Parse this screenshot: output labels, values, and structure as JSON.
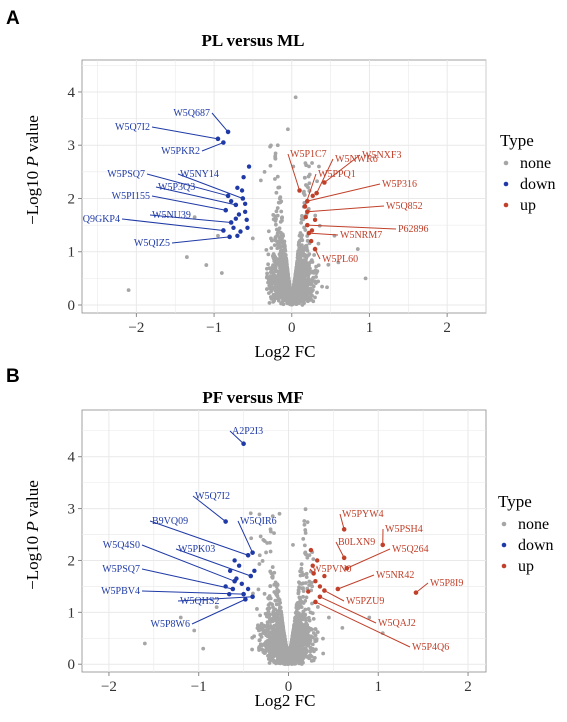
{
  "colors": {
    "none": "#a6a6a6",
    "down": "#1f3aa6",
    "up": "#c0402a",
    "grid": "#e9e9e9",
    "axis": "#8a8a8a"
  },
  "chart_data": [
    {
      "panel": "A",
      "type": "scatter",
      "title": "PL versus ML",
      "xlabel": "Log2 FC",
      "ylabel_prefix": "−Log10 ",
      "ylabel_italic": "P",
      "ylabel_suffix": " value",
      "xlim": [
        -2.7,
        2.5
      ],
      "ylim": [
        -0.15,
        4.6
      ],
      "xticks": [
        -2,
        -1,
        0,
        1,
        2
      ],
      "yticks": [
        0,
        1,
        2,
        3,
        4
      ],
      "xtick_labels": [
        "−2",
        "−1",
        "0",
        "1",
        "2"
      ],
      "ytick_labels": [
        "0",
        "1",
        "2",
        "3",
        "4"
      ],
      "grid": true,
      "legend": {
        "title": "Type",
        "position": "right",
        "entries": [
          "none",
          "down",
          "up"
        ]
      },
      "labeled_points": [
        {
          "label": "W5Q687",
          "x": -0.82,
          "y": 3.25,
          "type": "down"
        },
        {
          "label": "W5Q7I2",
          "x": -0.95,
          "y": 3.12,
          "type": "down"
        },
        {
          "label": "W5PKR2",
          "x": -0.88,
          "y": 3.05,
          "type": "down"
        },
        {
          "label": "W5PSQ7",
          "x": -0.82,
          "y": 2.05,
          "type": "down"
        },
        {
          "label": "W5NY14",
          "x": -0.63,
          "y": 2.0,
          "type": "down"
        },
        {
          "label": "W5P3Q3",
          "x": -0.72,
          "y": 1.88,
          "type": "down"
        },
        {
          "label": "W5PI155",
          "x": -0.85,
          "y": 1.78,
          "type": "down"
        },
        {
          "label": "W5NU39",
          "x": -0.78,
          "y": 1.55,
          "type": "down"
        },
        {
          "label": "Q9GKP4",
          "x": -0.88,
          "y": 1.4,
          "type": "down"
        },
        {
          "label": "W5QIZ5",
          "x": -0.8,
          "y": 1.28,
          "type": "down"
        },
        {
          "label": "W5P1C7",
          "x": 0.1,
          "y": 2.15,
          "type": "up"
        },
        {
          "label": "W5NWR6",
          "x": 0.32,
          "y": 2.1,
          "type": "up"
        },
        {
          "label": "W5NXF3",
          "x": 0.42,
          "y": 2.3,
          "type": "up"
        },
        {
          "label": "W5P316",
          "x": 0.2,
          "y": 1.95,
          "type": "up"
        },
        {
          "label": "W5PPQ1",
          "x": 0.17,
          "y": 1.85,
          "type": "up"
        },
        {
          "label": "W5Q852",
          "x": 0.2,
          "y": 1.75,
          "type": "up"
        },
        {
          "label": "P62896",
          "x": 0.2,
          "y": 1.5,
          "type": "up"
        },
        {
          "label": "W5NRM7",
          "x": 0.22,
          "y": 1.35,
          "type": "up"
        },
        {
          "label": "W5PL60",
          "x": 0.3,
          "y": 1.05,
          "type": "up"
        }
      ],
      "extra_points": {
        "down": [
          [
            -0.62,
            2.4
          ],
          [
            -0.55,
            2.6
          ],
          [
            -0.7,
            2.2
          ],
          [
            -0.6,
            1.9
          ],
          [
            -0.68,
            1.7
          ],
          [
            -0.58,
            1.6
          ],
          [
            -0.75,
            1.45
          ],
          [
            -0.66,
            1.38
          ],
          [
            -0.72,
            1.62
          ],
          [
            -0.6,
            1.75
          ],
          [
            -0.7,
            1.3
          ],
          [
            -0.64,
            2.15
          ],
          [
            -0.78,
            1.95
          ],
          [
            -0.57,
            1.45
          ]
        ],
        "up": [
          [
            0.25,
            1.2
          ],
          [
            0.3,
            1.6
          ],
          [
            0.27,
            2.05
          ],
          [
            0.18,
            1.65
          ],
          [
            0.26,
            1.4
          ]
        ]
      },
      "outlier_none": [
        [
          -2.1,
          0.28
        ],
        [
          -1.35,
          0.9
        ],
        [
          -1.1,
          0.75
        ],
        [
          -0.95,
          1.3
        ],
        [
          -0.9,
          0.6
        ],
        [
          0.85,
          1.05
        ],
        [
          0.95,
          0.5
        ],
        [
          0.05,
          3.9
        ],
        [
          -0.05,
          3.3
        ],
        [
          -0.18,
          3.0
        ],
        [
          0.02,
          2.6
        ],
        [
          -1.25,
          1.65
        ],
        [
          -0.35,
          2.5
        ],
        [
          0.35,
          2.6
        ],
        [
          0.55,
          1.3
        ],
        [
          0.6,
          0.8
        ]
      ]
    },
    {
      "panel": "B",
      "type": "scatter",
      "title": "PF versus MF",
      "xlabel": "Log2 FC",
      "ylabel_prefix": "−Log10 ",
      "ylabel_italic": "P",
      "ylabel_suffix": " value",
      "xlim": [
        -2.3,
        2.2
      ],
      "ylim": [
        -0.15,
        4.9
      ],
      "xticks": [
        -2,
        -1,
        0,
        1,
        2
      ],
      "yticks": [
        0,
        1,
        2,
        3,
        4
      ],
      "xtick_labels": [
        "−2",
        "−1",
        "0",
        "1",
        "2"
      ],
      "ytick_labels": [
        "0",
        "1",
        "2",
        "3",
        "4"
      ],
      "grid": true,
      "legend": {
        "title": "Type",
        "position": "right",
        "entries": [
          "none",
          "down",
          "up"
        ]
      },
      "labeled_points": [
        {
          "label": "A2P2I3",
          "x": -0.5,
          "y": 4.25,
          "type": "down"
        },
        {
          "label": "W5Q7I2",
          "x": -0.7,
          "y": 2.75,
          "type": "down"
        },
        {
          "label": "B9VQ09",
          "x": -0.45,
          "y": 2.1,
          "type": "down"
        },
        {
          "label": "W5QIR6",
          "x": -0.4,
          "y": 2.15,
          "type": "down"
        },
        {
          "label": "W5Q4S0",
          "x": -0.6,
          "y": 1.6,
          "type": "down"
        },
        {
          "label": "W5PK03",
          "x": -0.42,
          "y": 1.7,
          "type": "down"
        },
        {
          "label": "W5PSQ7",
          "x": -0.62,
          "y": 1.45,
          "type": "down"
        },
        {
          "label": "W5PBV4",
          "x": -0.5,
          "y": 1.35,
          "type": "down"
        },
        {
          "label": "W5QHS2",
          "x": -0.4,
          "y": 1.3,
          "type": "down"
        },
        {
          "label": "W5P8W6",
          "x": -0.48,
          "y": 1.25,
          "type": "down"
        },
        {
          "label": "W5PYW4",
          "x": 0.62,
          "y": 2.6,
          "type": "up"
        },
        {
          "label": "W5PVN0",
          "x": 0.28,
          "y": 1.75,
          "type": "up"
        },
        {
          "label": "B0LXN9",
          "x": 0.62,
          "y": 2.05,
          "type": "up"
        },
        {
          "label": "W5PSH4",
          "x": 1.05,
          "y": 2.3,
          "type": "up"
        },
        {
          "label": "W5Q264",
          "x": 0.65,
          "y": 1.85,
          "type": "up"
        },
        {
          "label": "W5NR42",
          "x": 0.55,
          "y": 1.45,
          "type": "up"
        },
        {
          "label": "W5P8I9",
          "x": 1.42,
          "y": 1.38,
          "type": "up"
        },
        {
          "label": "W5PZU9",
          "x": 0.4,
          "y": 1.42,
          "type": "up"
        },
        {
          "label": "W5QAJ2",
          "x": 0.35,
          "y": 1.3,
          "type": "up"
        },
        {
          "label": "W5P4Q6",
          "x": 0.3,
          "y": 1.2,
          "type": "up"
        }
      ],
      "extra_points": {
        "down": [
          [
            -0.65,
            1.8
          ],
          [
            -0.55,
            1.9
          ],
          [
            -0.7,
            1.5
          ],
          [
            -0.58,
            1.65
          ],
          [
            -0.52,
            1.55
          ],
          [
            -0.66,
            1.35
          ],
          [
            -0.45,
            1.45
          ],
          [
            -0.6,
            2.0
          ],
          [
            -0.38,
            1.8
          ]
        ],
        "up": [
          [
            0.25,
            2.2
          ],
          [
            0.3,
            1.6
          ],
          [
            0.35,
            1.5
          ],
          [
            0.27,
            1.9
          ],
          [
            0.22,
            1.4
          ],
          [
            0.32,
            2.0
          ],
          [
            0.4,
            1.7
          ]
        ]
      },
      "outlier_none": [
        [
          -1.6,
          0.4
        ],
        [
          -1.2,
          0.9
        ],
        [
          -1.05,
          0.65
        ],
        [
          -0.95,
          0.3
        ],
        [
          0.9,
          0.9
        ],
        [
          1.05,
          0.6
        ],
        [
          -0.2,
          2.6
        ],
        [
          -0.1,
          2.9
        ],
        [
          0.05,
          2.3
        ],
        [
          -0.32,
          2.1
        ],
        [
          0.45,
          0.9
        ],
        [
          0.6,
          0.7
        ],
        [
          -0.8,
          1.1
        ]
      ]
    }
  ]
}
